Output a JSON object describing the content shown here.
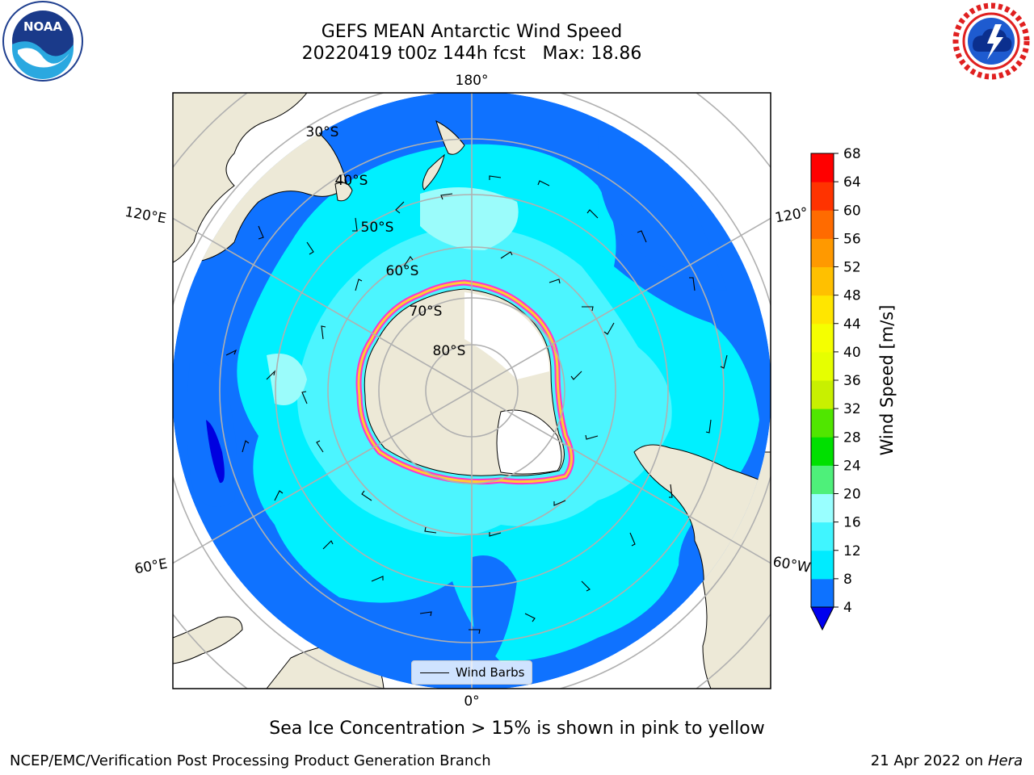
{
  "title": {
    "line1": "GEFS MEAN Antarctic Wind Speed",
    "line2": "20220419 t00z 144h fcst   Max: 18.86"
  },
  "logos": {
    "noaa": {
      "text": "NOAA",
      "ring_text": "NATIONAL OCEANIC AND ATMOSPHERIC ADMINISTRATION",
      "bottom_text": "U.S. DEPARTMENT OF COMMERCE",
      "icon": "noaa-logo"
    },
    "nws": {
      "ring_text": "NATIONAL WEATHER SERVICE",
      "icon": "nws-logo"
    }
  },
  "map": {
    "projection": "south-polar-stereographic",
    "lon_labels": {
      "top": "180°",
      "bottom": "0°",
      "left_upper": "120°E",
      "left_lower": "60°E",
      "right_upper": "120°",
      "right_lower": "60°W"
    },
    "lat_labels": [
      "30°S",
      "40°S",
      "50°S",
      "60°S",
      "70°S",
      "80°S"
    ],
    "colors": {
      "land": "#ede9d7",
      "ice_sheet": "#ffffff",
      "ocean_deep": "#0f72ff",
      "ocean_mid": "#00f0ff",
      "ocean_light": "#4cf5ff",
      "ocean_lightest": "#9bfcfb",
      "gridline": "#b0b0b0",
      "sea_ice_edge": "#ff33cc"
    }
  },
  "legend": {
    "label": "Wind Barbs"
  },
  "colorbar": {
    "label": "Wind Speed [m/s]",
    "ticks": [
      "4",
      "8",
      "12",
      "16",
      "20",
      "24",
      "28",
      "32",
      "36",
      "40",
      "44",
      "48",
      "52",
      "56",
      "60",
      "64",
      "68"
    ],
    "colors": [
      "#0d72ff",
      "#00ebff",
      "#40f5ff",
      "#99ffff",
      "#4ef07a",
      "#00e000",
      "#50e600",
      "#c8f000",
      "#e6ff00",
      "#f5ff00",
      "#ffe600",
      "#ffc000",
      "#ff9900",
      "#ff6b00",
      "#ff3300",
      "#ff0000"
    ],
    "extend_color": "#0000ee"
  },
  "caption": "Sea Ice Concentration > 15% is shown in pink to yellow",
  "footer": {
    "left": "NCEP/EMC/Verification Post Processing Product Generation Branch",
    "right_date": "21 Apr 2022 on ",
    "right_machine": "Hera"
  }
}
